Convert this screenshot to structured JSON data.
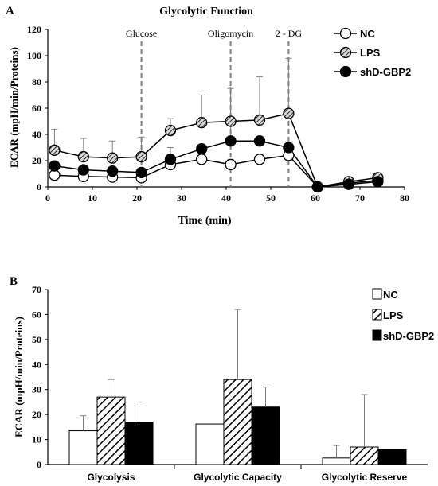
{
  "panels": [
    {
      "letter": "A"
    },
    {
      "letter": "B"
    }
  ],
  "colors": {
    "axis": "#000000",
    "marker": "#808080",
    "lps_fill": "#d8d8d8",
    "black": "#000000",
    "white": "#ffffff"
  },
  "chart_data": [
    {
      "type": "line",
      "title": "Glycolytic Function",
      "xlabel": "Time (min)",
      "ylabel": "ECAR (mpH/min/Proteins)",
      "xlim": [
        0,
        80
      ],
      "ylim": [
        0,
        120
      ],
      "xticks": [
        0,
        10,
        20,
        30,
        40,
        50,
        60,
        70,
        80
      ],
      "yticks": [
        0,
        20,
        40,
        60,
        80,
        100,
        120
      ],
      "grid": false,
      "legend_position": "top-right",
      "annotations": [
        {
          "label": "Glucose",
          "x": 21
        },
        {
          "label": "Oligomycin",
          "x": 41
        },
        {
          "label": "2 - DG",
          "x": 54
        }
      ],
      "series": [
        {
          "name": "NC",
          "style": "open-circle",
          "points": [
            {
              "x": 1.5,
              "y": 9,
              "err": 0
            },
            {
              "x": 8,
              "y": 8,
              "err": 0
            },
            {
              "x": 14.5,
              "y": 7.5,
              "err": 0
            },
            {
              "x": 21,
              "y": 7,
              "err": 0
            },
            {
              "x": 27.5,
              "y": 17,
              "err": 4
            },
            {
              "x": 34.5,
              "y": 21,
              "err": 6
            },
            {
              "x": 41,
              "y": 17,
              "err": 4
            },
            {
              "x": 47.5,
              "y": 21,
              "err": 0
            },
            {
              "x": 54,
              "y": 24,
              "err": 5
            },
            {
              "x": 60.5,
              "y": 0,
              "err": 0
            },
            {
              "x": 67.5,
              "y": 3,
              "err": 0
            },
            {
              "x": 74,
              "y": 5,
              "err": 0
            }
          ]
        },
        {
          "name": "LPS",
          "style": "hatched-circle",
          "points": [
            {
              "x": 1.5,
              "y": 28,
              "err": 16
            },
            {
              "x": 8,
              "y": 23,
              "err": 14
            },
            {
              "x": 14.5,
              "y": 22,
              "err": 13
            },
            {
              "x": 21,
              "y": 23,
              "err": 15
            },
            {
              "x": 27.5,
              "y": 43,
              "err": 9
            },
            {
              "x": 34.5,
              "y": 49,
              "err": 21
            },
            {
              "x": 41,
              "y": 50,
              "err": 26
            },
            {
              "x": 47.5,
              "y": 51,
              "err": 33
            },
            {
              "x": 54,
              "y": 56,
              "err": 42
            },
            {
              "x": 60.5,
              "y": 0,
              "err": 0
            },
            {
              "x": 67.5,
              "y": 4,
              "err": 0
            },
            {
              "x": 74,
              "y": 7,
              "err": 2
            }
          ]
        },
        {
          "name": "shD-GBP2",
          "style": "filled-circle",
          "points": [
            {
              "x": 1.5,
              "y": 16,
              "err": 0
            },
            {
              "x": 8,
              "y": 13,
              "err": 0
            },
            {
              "x": 14.5,
              "y": 12,
              "err": 0
            },
            {
              "x": 21,
              "y": 11,
              "err": 0
            },
            {
              "x": 27.5,
              "y": 21,
              "err": 9
            },
            {
              "x": 34.5,
              "y": 29,
              "err": 0
            },
            {
              "x": 41,
              "y": 35,
              "err": 40
            },
            {
              "x": 47.5,
              "y": 35,
              "err": 0
            },
            {
              "x": 54,
              "y": 30,
              "err": 0
            },
            {
              "x": 60.5,
              "y": 0,
              "err": 0
            },
            {
              "x": 67.5,
              "y": 2,
              "err": 0
            },
            {
              "x": 74,
              "y": 4,
              "err": 0
            }
          ]
        }
      ]
    },
    {
      "type": "bar",
      "ylabel": "ECAR (mpH/min/Proteins)",
      "ylim": [
        0,
        70
      ],
      "yticks": [
        0,
        10,
        20,
        30,
        40,
        50,
        60,
        70
      ],
      "grid": false,
      "legend_position": "top-right",
      "categories": [
        "Glycolysis",
        "Glycolytic Capacity",
        "Glycolytic Reserve"
      ],
      "series": [
        {
          "name": "NC",
          "pattern": "white",
          "values": [
            13.5,
            16.2,
            2.6
          ],
          "errors": [
            6,
            0,
            5
          ]
        },
        {
          "name": "LPS",
          "pattern": "hatched",
          "values": [
            27,
            34,
            7
          ],
          "errors": [
            7,
            28,
            21
          ]
        },
        {
          "name": "shD-GBP2",
          "pattern": "black",
          "values": [
            17,
            23,
            6
          ],
          "errors": [
            8,
            8,
            0
          ]
        }
      ]
    }
  ]
}
